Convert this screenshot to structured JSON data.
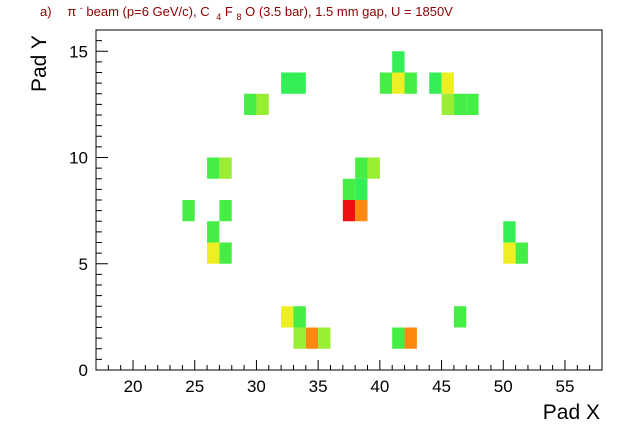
{
  "chart_data": {
    "type": "heatmap",
    "title": {
      "prefix": "a)",
      "particle": "π",
      "charge": "-",
      "beam": " beam (p=6 GeV/c), C",
      "sub1": "4",
      "mid": "F",
      "sub2": "8",
      "rest": "O (3.5 bar), 1.5 mm gap, U = 1850V"
    },
    "xlabel": "Pad X",
    "ylabel": "Pad Y",
    "xlim": [
      17,
      58
    ],
    "ylim": [
      0,
      16
    ],
    "x_ticks": [
      20,
      25,
      30,
      35,
      40,
      45,
      50,
      55
    ],
    "y_ticks": [
      0,
      5,
      10,
      15
    ],
    "grid": false,
    "cells": [
      {
        "x": 41,
        "y": 14,
        "color": "#33ee55"
      },
      {
        "x": 32,
        "y": 13,
        "color": "#33ee55"
      },
      {
        "x": 33,
        "y": 13,
        "color": "#33ee55"
      },
      {
        "x": 40,
        "y": 13,
        "color": "#44ee44"
      },
      {
        "x": 41,
        "y": 13,
        "color": "#eeee22"
      },
      {
        "x": 42,
        "y": 13,
        "color": "#44ee44"
      },
      {
        "x": 44,
        "y": 13,
        "color": "#33ee55"
      },
      {
        "x": 45,
        "y": 13,
        "color": "#eeee22"
      },
      {
        "x": 29,
        "y": 12,
        "color": "#44ee44"
      },
      {
        "x": 30,
        "y": 12,
        "color": "#99ee33"
      },
      {
        "x": 45,
        "y": 12,
        "color": "#99ee33"
      },
      {
        "x": 46,
        "y": 12,
        "color": "#44ee44"
      },
      {
        "x": 47,
        "y": 12,
        "color": "#44ee44"
      },
      {
        "x": 26,
        "y": 9,
        "color": "#44ee44"
      },
      {
        "x": 27,
        "y": 9,
        "color": "#99ee33"
      },
      {
        "x": 38,
        "y": 9,
        "color": "#44ee44"
      },
      {
        "x": 39,
        "y": 9,
        "color": "#99ee33"
      },
      {
        "x": 37,
        "y": 8,
        "color": "#44ee44"
      },
      {
        "x": 38,
        "y": 8,
        "color": "#33ee55"
      },
      {
        "x": 37,
        "y": 7,
        "color": "#ee1111"
      },
      {
        "x": 38,
        "y": 7,
        "color": "#ff8811"
      },
      {
        "x": 24,
        "y": 7,
        "color": "#44ee44"
      },
      {
        "x": 27,
        "y": 7,
        "color": "#44ee44"
      },
      {
        "x": 26,
        "y": 6,
        "color": "#44ee44"
      },
      {
        "x": 26,
        "y": 5,
        "color": "#eeee22"
      },
      {
        "x": 27,
        "y": 5,
        "color": "#44ee44"
      },
      {
        "x": 50,
        "y": 6,
        "color": "#33ee55"
      },
      {
        "x": 50,
        "y": 5,
        "color": "#eeee22"
      },
      {
        "x": 51,
        "y": 5,
        "color": "#44ee44"
      },
      {
        "x": 32,
        "y": 2,
        "color": "#eeee22"
      },
      {
        "x": 33,
        "y": 2,
        "color": "#44ee44"
      },
      {
        "x": 46,
        "y": 2,
        "color": "#44ee44"
      },
      {
        "x": 33,
        "y": 1,
        "color": "#99ee33"
      },
      {
        "x": 34,
        "y": 1,
        "color": "#ff8811"
      },
      {
        "x": 35,
        "y": 1,
        "color": "#99ee33"
      },
      {
        "x": 41,
        "y": 1,
        "color": "#44ee44"
      },
      {
        "x": 42,
        "y": 1,
        "color": "#ff8811"
      }
    ]
  }
}
